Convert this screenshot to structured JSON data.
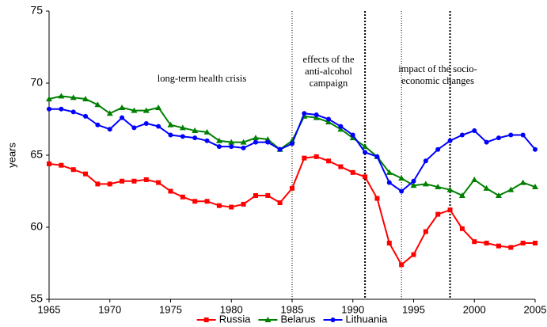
{
  "chart_data": {
    "type": "line",
    "y_label": "years",
    "x": [
      1965,
      1966,
      1967,
      1968,
      1969,
      1970,
      1971,
      1972,
      1973,
      1974,
      1975,
      1976,
      1977,
      1978,
      1979,
      1980,
      1981,
      1982,
      1983,
      1984,
      1985,
      1986,
      1987,
      1988,
      1989,
      1990,
      1991,
      1992,
      1993,
      1994,
      1995,
      1996,
      1997,
      1998,
      1999,
      2000,
      2001,
      2002,
      2003,
      2004,
      2005
    ],
    "series": [
      {
        "name": "Russia",
        "color": "#ff0000",
        "marker": "square",
        "values": [
          64.4,
          64.3,
          64.0,
          63.7,
          63.0,
          63.0,
          63.2,
          63.2,
          63.3,
          63.1,
          62.5,
          62.1,
          61.8,
          61.8,
          61.5,
          61.4,
          61.6,
          62.2,
          62.2,
          61.7,
          62.7,
          64.8,
          64.9,
          64.6,
          64.2,
          63.8,
          63.5,
          62.0,
          58.9,
          57.4,
          58.1,
          59.7,
          60.9,
          61.2,
          59.9,
          59.0,
          58.9,
          58.7,
          58.6,
          58.9,
          58.9
        ]
      },
      {
        "name": "Belarus",
        "color": "#008000",
        "marker": "triangle",
        "values": [
          68.9,
          69.1,
          69.0,
          68.9,
          68.5,
          67.9,
          68.3,
          68.1,
          68.1,
          68.3,
          67.1,
          66.9,
          66.7,
          66.6,
          66.0,
          65.9,
          65.9,
          66.2,
          66.1,
          65.4,
          66.0,
          67.7,
          67.6,
          67.3,
          66.8,
          66.2,
          65.6,
          64.9,
          63.8,
          63.4,
          62.9,
          63.0,
          62.8,
          62.6,
          62.2,
          63.3,
          62.7,
          62.2,
          62.6,
          63.1,
          62.8
        ]
      },
      {
        "name": "Lithuania",
        "color": "#0000ff",
        "marker": "circle",
        "values": [
          68.2,
          68.2,
          68.0,
          67.7,
          67.1,
          66.8,
          67.6,
          66.9,
          67.2,
          67.0,
          66.4,
          66.3,
          66.2,
          66.0,
          65.6,
          65.6,
          65.5,
          65.9,
          65.9,
          65.4,
          65.8,
          67.9,
          67.8,
          67.5,
          67.0,
          66.4,
          65.2,
          64.9,
          63.1,
          62.5,
          63.2,
          64.6,
          65.4,
          66.0,
          66.4,
          66.7,
          65.9,
          66.2,
          66.4,
          66.4,
          65.4
        ]
      }
    ],
    "xlim": [
      1965,
      2005
    ],
    "xticks": [
      1965,
      1970,
      1975,
      1980,
      1985,
      1990,
      1995,
      2000,
      2005
    ],
    "ylim": [
      55,
      75
    ],
    "yticks": [
      55,
      60,
      65,
      70,
      75
    ],
    "vlines": [
      1985,
      1991,
      1994,
      1998
    ],
    "annotations": [
      [
        "long-term health crisis"
      ],
      [
        "effects of the",
        "anti-alcohol",
        "campaign"
      ],
      [
        "impact of the socio-",
        "economic changes"
      ]
    ],
    "legend": "bottom"
  }
}
